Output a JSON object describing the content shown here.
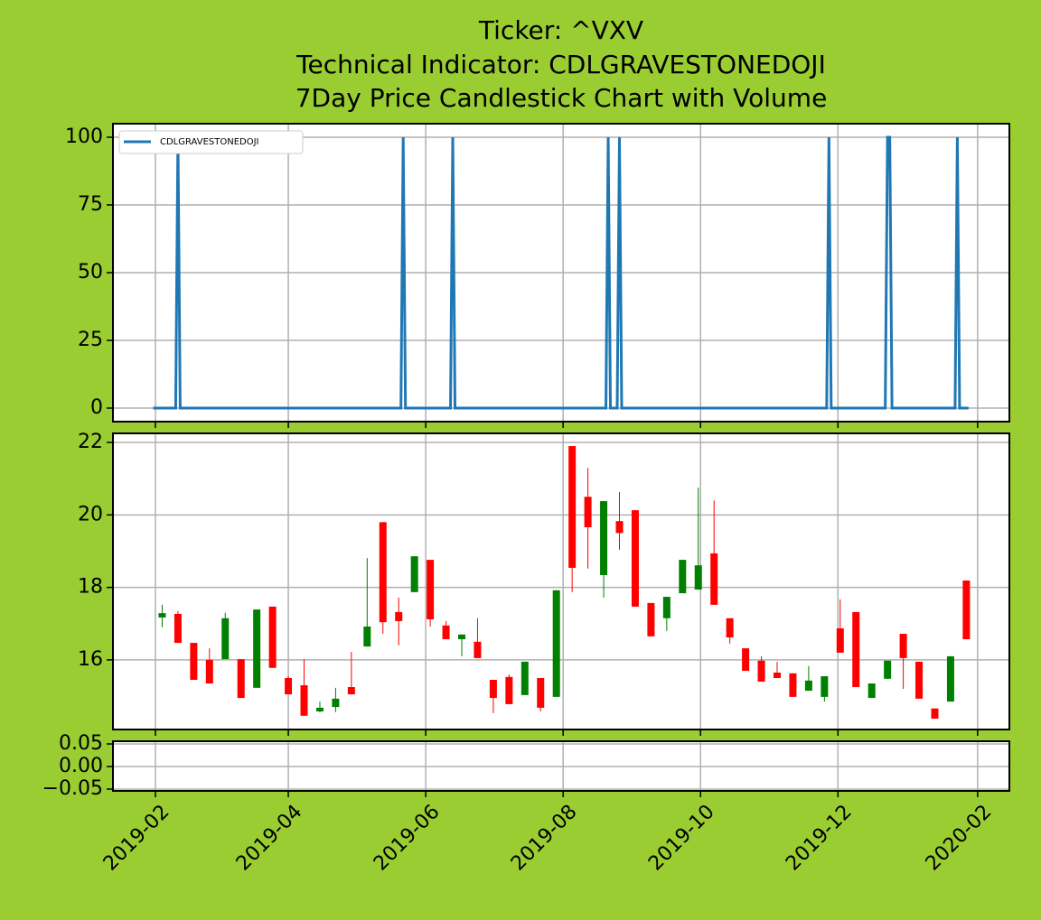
{
  "chart_data": [
    {
      "type": "line",
      "title": [
        "Ticker: ^VXV",
        "Technical Indicator: CDLGRAVESTONEDOJI",
        "7Day Price Candlestick Chart with Volume"
      ],
      "x": [
        17927,
        17937,
        17938,
        17939,
        18037,
        18038,
        18039,
        18059,
        18060,
        18061,
        18128,
        18129,
        18130,
        18133,
        18134,
        18135,
        18226,
        18227,
        18228,
        18252,
        18253,
        18254,
        18255,
        18283,
        18284,
        18285,
        18289
      ],
      "series": [
        {
          "name": "CDLGRAVESTONEDOJI",
          "color": "#1f77b4",
          "values": [
            0,
            0,
            100,
            0,
            0,
            100,
            0,
            0,
            100,
            0,
            0,
            100,
            0,
            0,
            100,
            0,
            0,
            100,
            0,
            0,
            100,
            100,
            0,
            0,
            100,
            0,
            0
          ]
        }
      ],
      "legend": "upper left",
      "ylim": [
        -5,
        105
      ],
      "yticks": [
        0,
        25,
        50,
        75,
        100
      ],
      "xlim": [
        17909.15,
        18307.1
      ],
      "xticks": [
        17928,
        17987,
        18048,
        18109,
        18170,
        18231,
        18293
      ],
      "grid": true
    },
    {
      "type": "candlestick",
      "x": [
        17931,
        17938,
        17945,
        17952,
        17959,
        17966,
        17973,
        17980,
        17987,
        17994,
        18001,
        18008,
        18015,
        18022,
        18029,
        18036,
        18043,
        18050,
        18057,
        18064,
        18071,
        18078,
        18085,
        18092,
        18099,
        18106,
        18113,
        18120,
        18127,
        18134,
        18141,
        18148,
        18155,
        18162,
        18169,
        18176,
        18183,
        18190,
        18197,
        18204,
        18211,
        18218,
        18225,
        18232,
        18239,
        18246,
        18253,
        18260,
        18267,
        18274,
        18281,
        18288
      ],
      "open": [
        17.17,
        17.27,
        16.47,
        16.0,
        16.02,
        16.02,
        15.23,
        17.47,
        15.5,
        15.3,
        14.58,
        14.7,
        15.25,
        16.37,
        19.8,
        17.32,
        17.87,
        18.76,
        16.95,
        16.57,
        16.5,
        15.45,
        15.53,
        15.03,
        15.5,
        14.98,
        21.9,
        20.5,
        18.34,
        19.83,
        20.13,
        17.57,
        17.15,
        17.84,
        17.94,
        18.94,
        17.15,
        16.32,
        15.98,
        15.65,
        15.63,
        15.15,
        14.98,
        16.87,
        17.32,
        14.95,
        15.48,
        16.72,
        15.95,
        14.66,
        14.85,
        18.19
      ],
      "high": [
        17.52,
        17.35,
        16.47,
        16.32,
        17.3,
        16.02,
        17.39,
        17.47,
        15.55,
        16.02,
        14.85,
        15.23,
        16.22,
        18.81,
        19.8,
        17.72,
        18.86,
        18.76,
        17.07,
        16.7,
        17.15,
        15.45,
        15.6,
        15.95,
        15.5,
        17.92,
        21.9,
        21.3,
        20.38,
        20.63,
        20.13,
        17.57,
        17.74,
        18.76,
        20.75,
        20.4,
        17.15,
        16.32,
        16.1,
        15.95,
        15.63,
        15.83,
        15.55,
        17.67,
        17.32,
        15.35,
        15.98,
        16.72,
        15.95,
        14.66,
        16.1,
        18.19
      ],
      "low": [
        16.9,
        16.47,
        15.45,
        15.35,
        16.02,
        14.95,
        15.23,
        15.78,
        15.05,
        14.46,
        14.55,
        14.56,
        15.05,
        16.37,
        16.72,
        16.4,
        17.87,
        16.92,
        16.57,
        16.1,
        16.05,
        14.53,
        14.78,
        15.03,
        14.58,
        14.98,
        17.87,
        18.52,
        17.72,
        19.04,
        17.47,
        16.65,
        16.8,
        17.84,
        17.94,
        17.52,
        16.45,
        15.7,
        15.4,
        15.5,
        14.98,
        15.15,
        14.85,
        16.2,
        15.25,
        14.95,
        15.48,
        15.2,
        14.93,
        14.38,
        14.85,
        16.57
      ],
      "close": [
        17.29,
        16.47,
        15.45,
        15.35,
        17.15,
        14.95,
        17.39,
        15.78,
        15.05,
        14.46,
        14.68,
        14.93,
        15.05,
        16.92,
        17.04,
        17.07,
        18.86,
        17.12,
        16.57,
        16.7,
        16.05,
        14.95,
        14.78,
        15.95,
        14.68,
        17.92,
        18.54,
        19.66,
        20.38,
        19.5,
        17.47,
        16.65,
        17.74,
        18.76,
        18.61,
        17.52,
        16.62,
        15.7,
        15.4,
        15.5,
        14.98,
        15.43,
        15.55,
        16.2,
        15.25,
        15.35,
        15.98,
        16.05,
        14.93,
        14.38,
        16.1,
        16.57
      ],
      "up_color": "#008000",
      "down_color": "#ff0000",
      "ylim": [
        14.08,
        22.25
      ],
      "yticks": [
        16,
        18,
        20,
        22
      ],
      "xlim": [
        17909.15,
        18307.1
      ],
      "xticks": [
        17928,
        17987,
        18048,
        18109,
        18170,
        18231,
        18293
      ],
      "grid": true
    },
    {
      "type": "bar",
      "ylim": [
        -0.054,
        0.056
      ],
      "yticks": [
        {
          "value": -0.05,
          "label": "−0.05"
        },
        {
          "value": 0,
          "label": "0.00"
        },
        {
          "value": 0.05,
          "label": "0.05"
        }
      ],
      "xlim": [
        17909.15,
        18307.1
      ],
      "xticks": [
        {
          "value": 17928,
          "label": "2019-02"
        },
        {
          "value": 17987,
          "label": "2019-04"
        },
        {
          "value": 18048,
          "label": "2019-06"
        },
        {
          "value": 18109,
          "label": "2019-08"
        },
        {
          "value": 18170,
          "label": "2019-10"
        },
        {
          "value": 18231,
          "label": "2019-12"
        },
        {
          "value": 18293,
          "label": "2020-02"
        }
      ],
      "grid": true
    }
  ]
}
